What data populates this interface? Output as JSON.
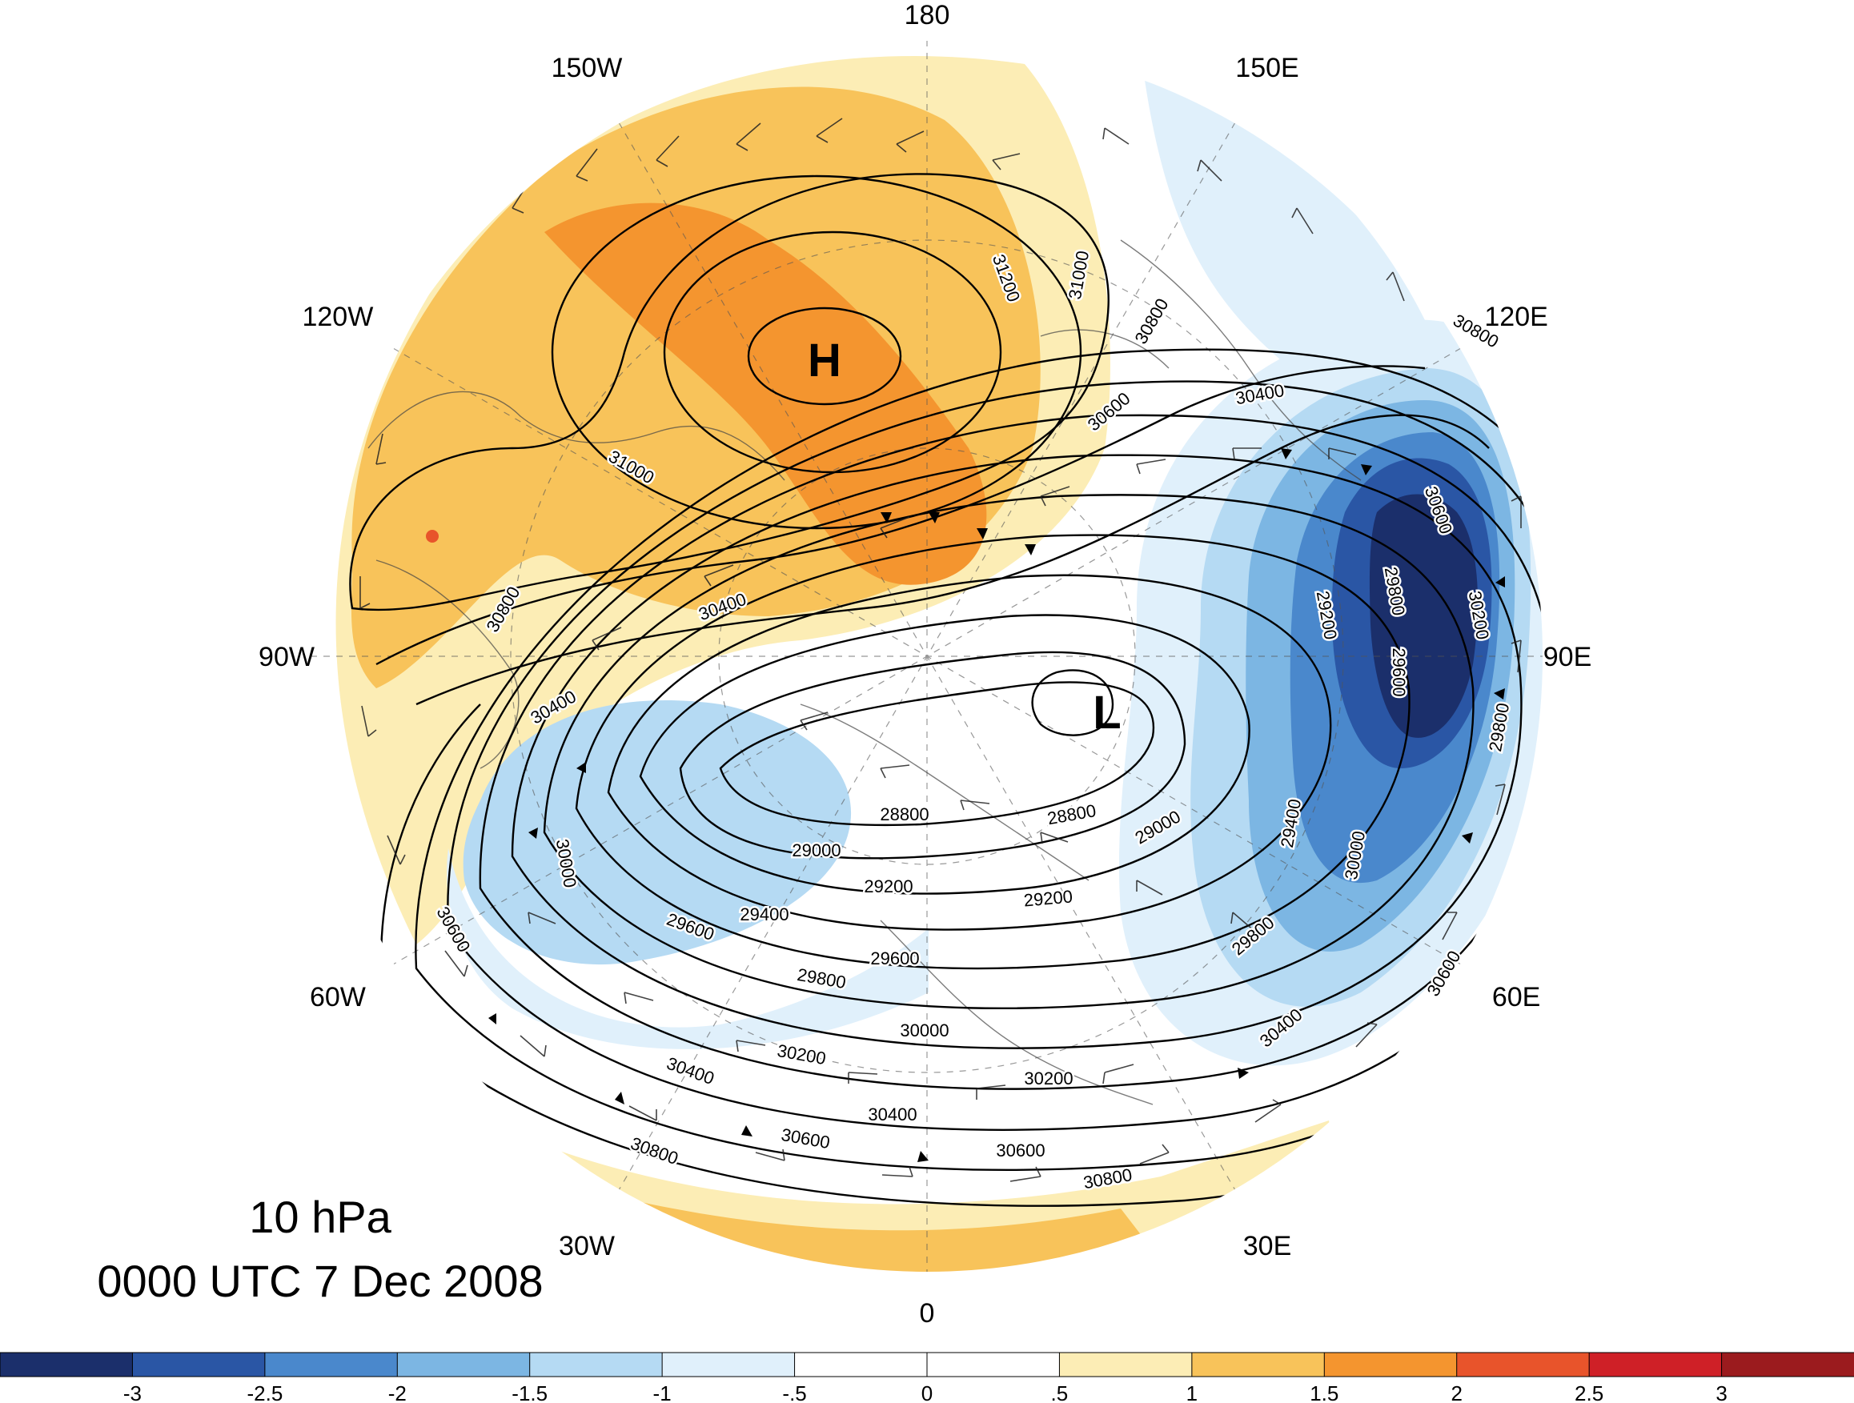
{
  "title": {
    "level": "10 hPa",
    "datetime": "0000 UTC 7 Dec 2008"
  },
  "longitude_labels": [
    {
      "text": "180",
      "angle": 180
    },
    {
      "text": "150E",
      "angle": 150
    },
    {
      "text": "120E",
      "angle": 120
    },
    {
      "text": "90E",
      "angle": 90
    },
    {
      "text": "60E",
      "angle": 60
    },
    {
      "text": "30E",
      "angle": 30
    },
    {
      "text": "0",
      "angle": 0
    },
    {
      "text": "30W",
      "angle": -30
    },
    {
      "text": "60W",
      "angle": -60
    },
    {
      "text": "90W",
      "angle": -90
    },
    {
      "text": "120W",
      "angle": -120
    },
    {
      "text": "150W",
      "angle": -150
    }
  ],
  "pressure_centers": [
    {
      "text": "H",
      "kind": "high"
    },
    {
      "text": "L",
      "kind": "low"
    }
  ],
  "contour_labels": [
    "31200",
    "31000",
    "31000",
    "30800",
    "30800",
    "30600",
    "30400",
    "30400",
    "30400",
    "30800",
    "30600",
    "30000",
    "28800",
    "28800",
    "29000",
    "29000",
    "29200",
    "29200",
    "29400",
    "29600",
    "29600",
    "29800",
    "29800",
    "30000",
    "30200",
    "30200",
    "30400",
    "30400",
    "30600",
    "30600",
    "30800",
    "30800",
    "30600",
    "30200",
    "29800",
    "29600",
    "29200",
    "29400",
    "30000",
    "29800",
    "30600",
    "30400"
  ],
  "colorbar": {
    "ticks": [
      "-3",
      "-2.5",
      "-2",
      "-1.5",
      "-1",
      "-.5",
      "0",
      ".5",
      "1",
      "1.5",
      "2",
      "2.5",
      "3"
    ],
    "colors": [
      "#1b2f6b",
      "#2a56a5",
      "#4a88cc",
      "#7cb6e3",
      "#b5daf3",
      "#e0f0fb",
      "#ffffff",
      "#ffffff",
      "#fcedb5",
      "#f8c35a",
      "#f4952f",
      "#e8542b",
      "#cf2027",
      "#9b1b1e"
    ]
  }
}
